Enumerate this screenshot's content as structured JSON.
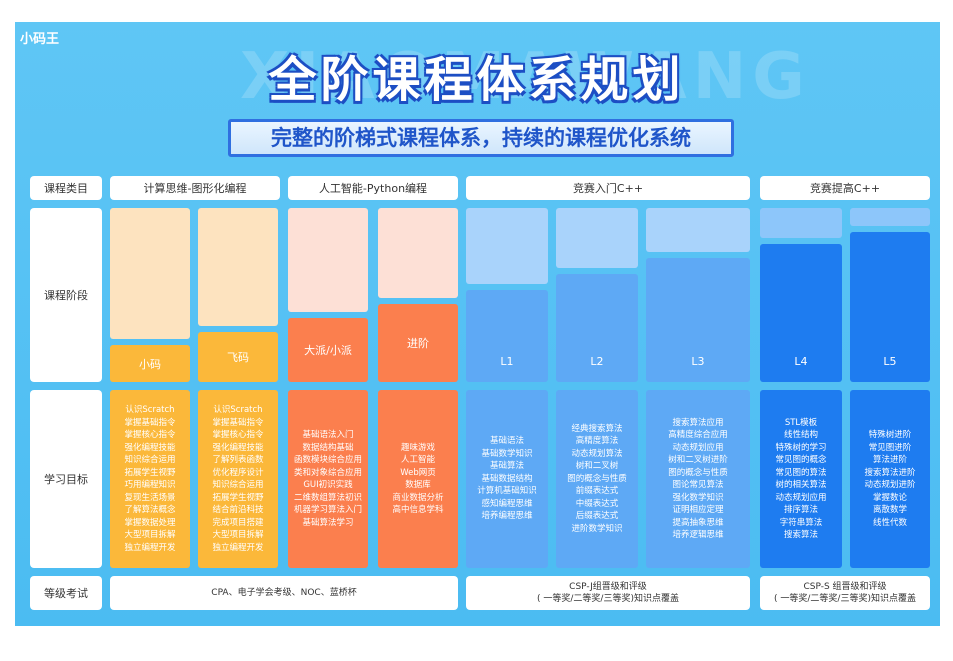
{
  "logo": "小码王",
  "watermark": "XIAOMAWANG",
  "title": "全阶课程体系规划",
  "subtitle": "完整的阶梯式课程体系，持续的课程优化系统",
  "row_labels": [
    "课程类目",
    "课程阶段",
    "学习目标",
    "等级考试"
  ],
  "categories": [
    "计算思维-图形化编程",
    "人工智能-Python编程",
    "竞赛入门C++",
    "竞赛提高C++"
  ],
  "stages": [
    {
      "label": "小码",
      "goals": [
        "认识Scratch",
        "掌握基础指令",
        "掌握核心指令",
        "强化编程技能",
        "知识综合运用",
        "拓展学生视野",
        "巧用编程知识",
        "复现生活场景",
        "了解算法概念",
        "掌握数据处理",
        "大型项目拆解",
        "独立编程开发"
      ]
    },
    {
      "label": "飞码",
      "goals": [
        "认识Scratch",
        "掌握基础指令",
        "掌握核心指令",
        "强化编程技能",
        "了解列表函数",
        "优化程序设计",
        "知识综合运用",
        "拓展学生视野",
        "结合前沿科技",
        "完成项目搭建",
        "大型项目拆解",
        "独立编程开发"
      ]
    },
    {
      "label": "大派/小派",
      "goals": [
        "基础语法入门",
        "数据结构基础",
        "函数模块综合应用",
        "类和对象综合应用",
        "GUI初识实践",
        "二维数组算法初识",
        "机器学习算法入门",
        "基础算法学习"
      ]
    },
    {
      "label": "进阶",
      "goals": [
        "趣味游戏",
        "人工智能",
        "Web网页",
        "数据库",
        "商业数据分析",
        "高中信息学科"
      ]
    },
    {
      "label": "L1",
      "goals": [
        "基础语法",
        "基础数学知识",
        "基础算法",
        "基础数据结构",
        "计算机基础知识",
        "感知编程思维",
        "培养编程思维"
      ]
    },
    {
      "label": "L2",
      "goals": [
        "经典搜索算法",
        "高精度算法",
        "动态规划算法",
        "树和二叉树",
        "图的概念与性质",
        "前缀表达式",
        "中缀表达式",
        "后缀表达式",
        "进阶数学知识"
      ]
    },
    {
      "label": "L3",
      "goals": [
        "搜索算法应用",
        "高精度综合应用",
        "动态规划应用",
        "树和二叉树进阶",
        "图的概念与性质",
        "图论常见算法",
        "强化数学知识",
        "证明相应定理",
        "提高抽象思维",
        "培养逻辑思维"
      ]
    },
    {
      "label": "L4",
      "goals": [
        "STL模板",
        "线性结构",
        "特殊树的学习",
        "常见图的概念",
        "常见图的算法",
        "树的相关算法",
        "动态规划应用",
        "排序算法",
        "字符串算法",
        "搜索算法"
      ]
    },
    {
      "label": "L5",
      "goals": [
        "特殊树进阶",
        "常见图进阶",
        "算法进阶",
        "搜索算法进阶",
        "动态规划进阶",
        "掌握数论",
        "离散数学",
        "线性代数"
      ]
    }
  ],
  "exams": [
    {
      "line1": "CPA、电子学会考级、NOC、蓝桥杯",
      "line2": ""
    },
    {
      "line1": "CSP-J组晋级和评级",
      "line2": "( 一等奖/二等奖/三等奖)知识点覆盖"
    },
    {
      "line1": "CSP-S 组晋级和评级",
      "line2": "( 一等奖/二等奖/三等奖)知识点覆盖"
    }
  ],
  "colors": {
    "yellow": "#fbb83a",
    "yellow_light": "#fde3bf",
    "orange": "#fb7f4e",
    "orange_light": "#fde0d6",
    "blue_l": "#5ea9f5",
    "blue_l_light": "#a9d3fb",
    "blue_h": "#1e7cf0",
    "blue_h_light": "#8dc6fa"
  }
}
